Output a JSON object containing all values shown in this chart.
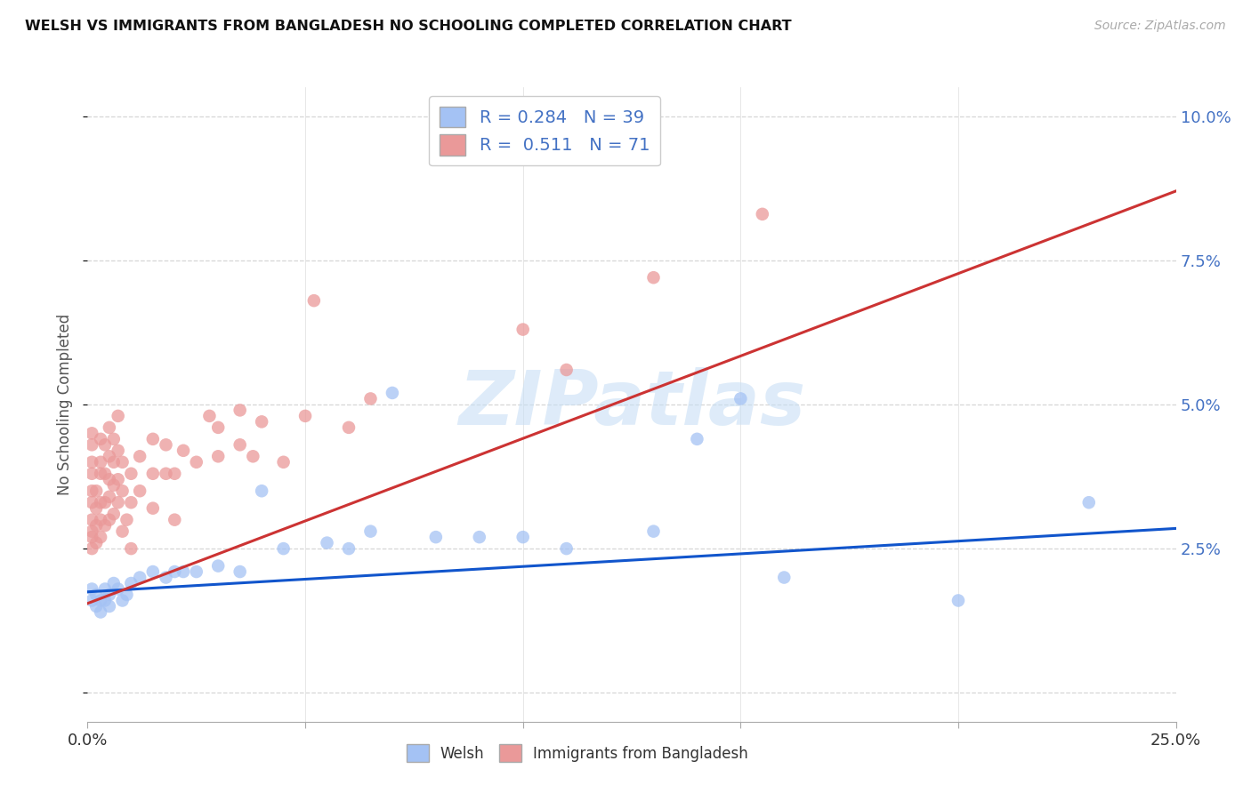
{
  "title": "WELSH VS IMMIGRANTS FROM BANGLADESH NO SCHOOLING COMPLETED CORRELATION CHART",
  "source": "Source: ZipAtlas.com",
  "ylabel": "No Schooling Completed",
  "xlim": [
    0.0,
    0.25
  ],
  "ylim": [
    -0.005,
    0.105
  ],
  "legend_welsh_R": "0.284",
  "legend_welsh_N": "39",
  "legend_bangladesh_R": "0.511",
  "legend_bangladesh_N": "71",
  "welsh_color": "#a4c2f4",
  "bangladesh_color": "#ea9999",
  "welsh_line_color": "#1155cc",
  "bangladesh_line_color": "#cc3333",
  "watermark": "ZIPatlas",
  "welsh_scatter": [
    [
      0.001,
      0.018
    ],
    [
      0.001,
      0.016
    ],
    [
      0.002,
      0.015
    ],
    [
      0.002,
      0.017
    ],
    [
      0.003,
      0.016
    ],
    [
      0.003,
      0.014
    ],
    [
      0.004,
      0.018
    ],
    [
      0.004,
      0.016
    ],
    [
      0.005,
      0.017
    ],
    [
      0.005,
      0.015
    ],
    [
      0.006,
      0.019
    ],
    [
      0.007,
      0.018
    ],
    [
      0.008,
      0.016
    ],
    [
      0.009,
      0.017
    ],
    [
      0.01,
      0.019
    ],
    [
      0.012,
      0.02
    ],
    [
      0.015,
      0.021
    ],
    [
      0.018,
      0.02
    ],
    [
      0.02,
      0.021
    ],
    [
      0.022,
      0.021
    ],
    [
      0.025,
      0.021
    ],
    [
      0.03,
      0.022
    ],
    [
      0.035,
      0.021
    ],
    [
      0.04,
      0.035
    ],
    [
      0.045,
      0.025
    ],
    [
      0.055,
      0.026
    ],
    [
      0.06,
      0.025
    ],
    [
      0.065,
      0.028
    ],
    [
      0.07,
      0.052
    ],
    [
      0.08,
      0.027
    ],
    [
      0.09,
      0.027
    ],
    [
      0.1,
      0.027
    ],
    [
      0.11,
      0.025
    ],
    [
      0.13,
      0.028
    ],
    [
      0.14,
      0.044
    ],
    [
      0.15,
      0.051
    ],
    [
      0.16,
      0.02
    ],
    [
      0.2,
      0.016
    ],
    [
      0.23,
      0.033
    ]
  ],
  "bangladesh_scatter": [
    [
      0.001,
      0.025
    ],
    [
      0.001,
      0.027
    ],
    [
      0.001,
      0.03
    ],
    [
      0.001,
      0.033
    ],
    [
      0.001,
      0.035
    ],
    [
      0.001,
      0.038
    ],
    [
      0.001,
      0.04
    ],
    [
      0.001,
      0.043
    ],
    [
      0.001,
      0.045
    ],
    [
      0.001,
      0.028
    ],
    [
      0.002,
      0.026
    ],
    [
      0.002,
      0.029
    ],
    [
      0.002,
      0.032
    ],
    [
      0.002,
      0.035
    ],
    [
      0.003,
      0.027
    ],
    [
      0.003,
      0.03
    ],
    [
      0.003,
      0.033
    ],
    [
      0.003,
      0.038
    ],
    [
      0.003,
      0.04
    ],
    [
      0.003,
      0.044
    ],
    [
      0.004,
      0.029
    ],
    [
      0.004,
      0.033
    ],
    [
      0.004,
      0.038
    ],
    [
      0.004,
      0.043
    ],
    [
      0.005,
      0.03
    ],
    [
      0.005,
      0.034
    ],
    [
      0.005,
      0.037
    ],
    [
      0.005,
      0.041
    ],
    [
      0.005,
      0.046
    ],
    [
      0.006,
      0.031
    ],
    [
      0.006,
      0.036
    ],
    [
      0.006,
      0.04
    ],
    [
      0.006,
      0.044
    ],
    [
      0.007,
      0.033
    ],
    [
      0.007,
      0.037
    ],
    [
      0.007,
      0.042
    ],
    [
      0.007,
      0.048
    ],
    [
      0.008,
      0.028
    ],
    [
      0.008,
      0.035
    ],
    [
      0.008,
      0.04
    ],
    [
      0.009,
      0.03
    ],
    [
      0.01,
      0.025
    ],
    [
      0.01,
      0.033
    ],
    [
      0.01,
      0.038
    ],
    [
      0.012,
      0.035
    ],
    [
      0.012,
      0.041
    ],
    [
      0.015,
      0.032
    ],
    [
      0.015,
      0.038
    ],
    [
      0.015,
      0.044
    ],
    [
      0.018,
      0.038
    ],
    [
      0.018,
      0.043
    ],
    [
      0.02,
      0.03
    ],
    [
      0.02,
      0.038
    ],
    [
      0.022,
      0.042
    ],
    [
      0.025,
      0.04
    ],
    [
      0.028,
      0.048
    ],
    [
      0.03,
      0.041
    ],
    [
      0.03,
      0.046
    ],
    [
      0.035,
      0.043
    ],
    [
      0.035,
      0.049
    ],
    [
      0.038,
      0.041
    ],
    [
      0.04,
      0.047
    ],
    [
      0.045,
      0.04
    ],
    [
      0.05,
      0.048
    ],
    [
      0.052,
      0.068
    ],
    [
      0.06,
      0.046
    ],
    [
      0.065,
      0.051
    ],
    [
      0.1,
      0.063
    ],
    [
      0.11,
      0.056
    ],
    [
      0.13,
      0.072
    ],
    [
      0.155,
      0.083
    ]
  ],
  "welsh_line_x": [
    0.0,
    0.25
  ],
  "welsh_line_y": [
    0.0175,
    0.0285
  ],
  "bangladesh_line_x": [
    0.0,
    0.25
  ],
  "bangladesh_line_y": [
    0.0155,
    0.087
  ]
}
